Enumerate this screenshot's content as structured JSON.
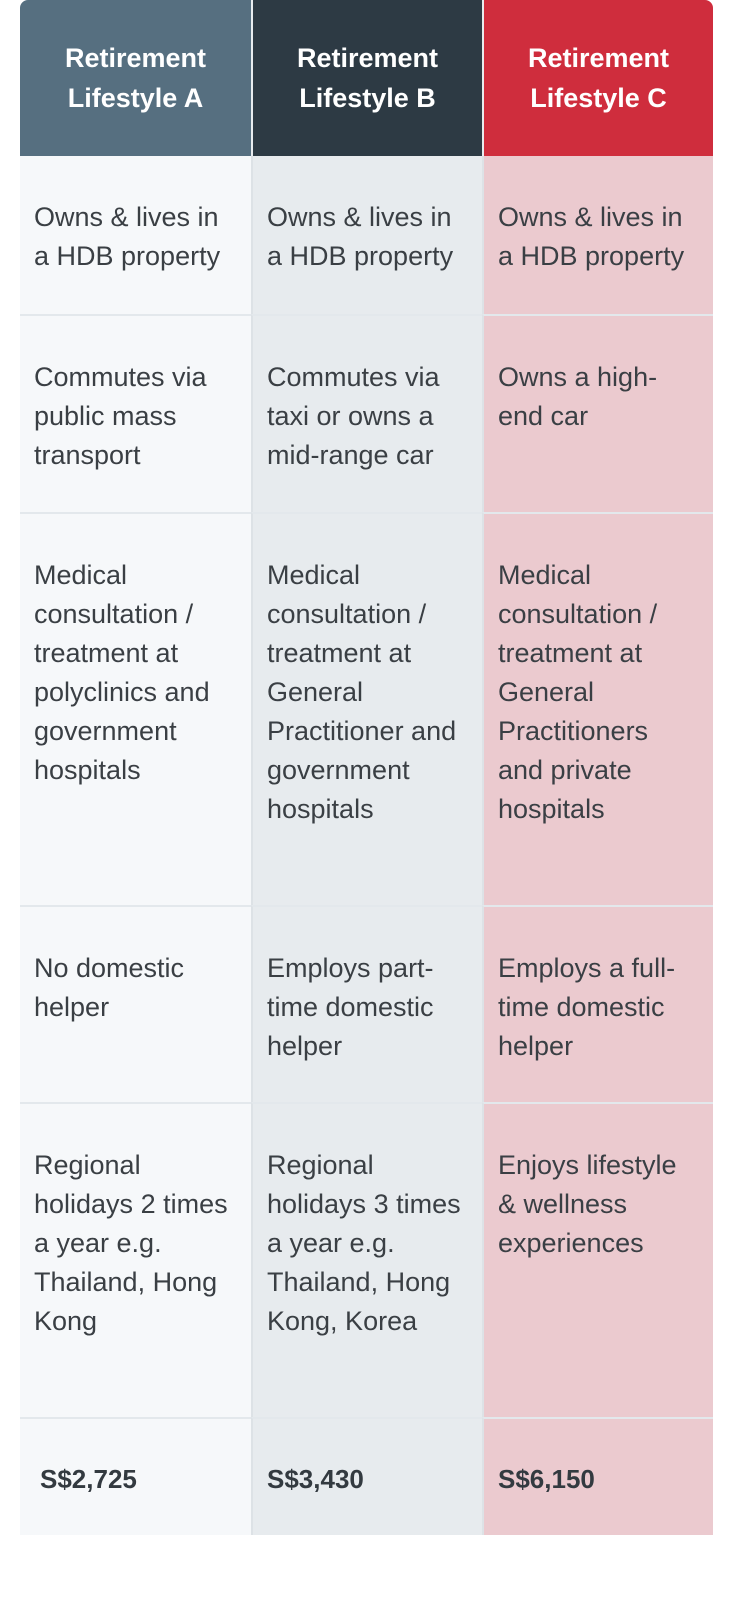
{
  "headers": [
    "Retirement\nLifestyle A",
    "Retirement\nLifestyle B",
    "Retirement\nLifestyle C"
  ],
  "rows": [
    [
      " Owns & lives in a HDB property",
      "Owns & lives in a HDB property",
      "Owns & lives in a HDB property"
    ],
    [
      " Commutes via public mass transport",
      "Commutes via taxi or owns a mid-range car",
      "Owns a high-end car"
    ],
    [
      " Medical consultation / treatment at polyclinics and government hospitals",
      "Medical consultation / treatment at General Practitioner and government hospitals",
      "Medical consultation / treatment at General Practitioners and private hospitals"
    ],
    [
      " No domestic helper",
      "Employs part-time domestic helper",
      "Employs a full-time domestic helper"
    ],
    [
      " Regional holidays 2 times a year e.g. Thailand, Hong Kong",
      "Regional holidays 3 times a year e.g. Thailand, Hong Kong, Korea",
      "Enjoys lifestyle & wellness experiences"
    ]
  ],
  "prices": [
    "S$2,725",
    "S$3,430",
    "S$6,150"
  ],
  "colors": {
    "lifestyle_a": "#566f80",
    "lifestyle_b": "#2d3a44",
    "lifestyle_c": "#cf2d3d"
  }
}
